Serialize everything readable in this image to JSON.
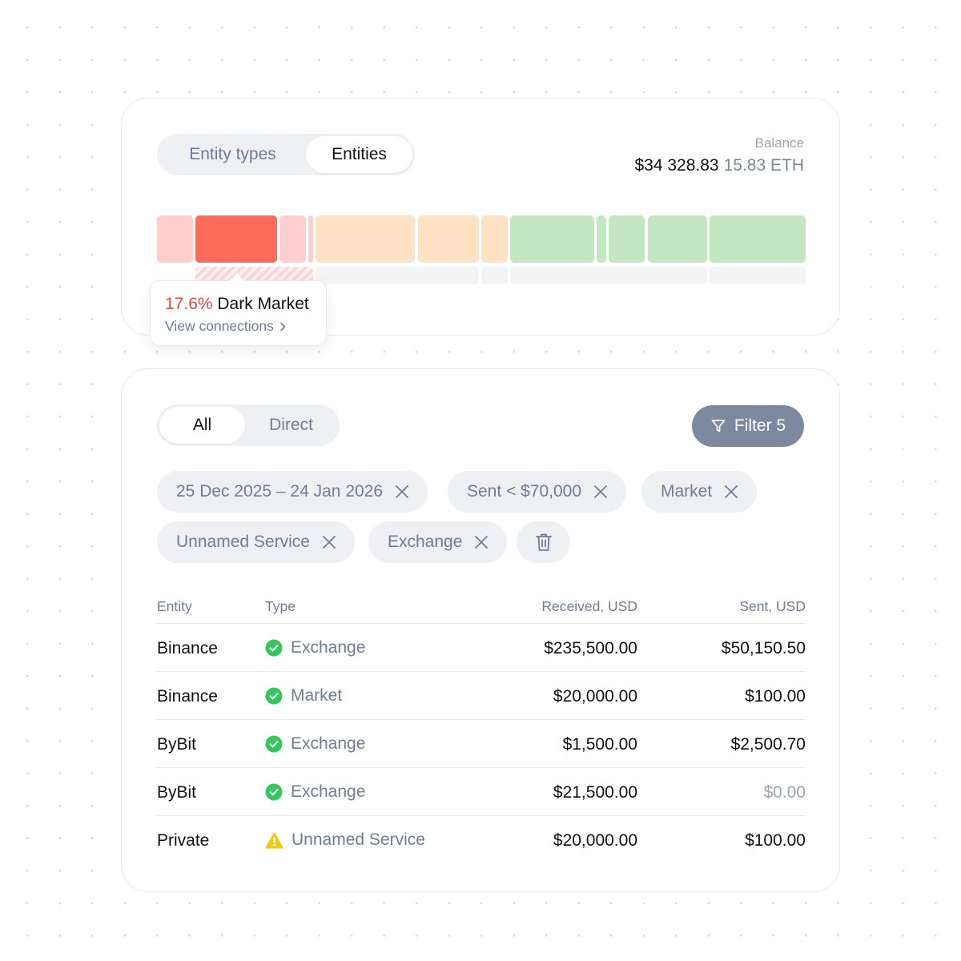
{
  "colors": {
    "accent_red": "#e24b3b",
    "filter_button": "#7d89a0",
    "success": "#34c759",
    "warning": "#f5c518"
  },
  "overview": {
    "tabs": [
      {
        "label": "Entity types",
        "active": false
      },
      {
        "label": "Entities",
        "active": true
      }
    ],
    "balance": {
      "label": "Balance",
      "usd": "$34 328.83",
      "eth": "15.83 ETH"
    },
    "treemap": {
      "blocks": [
        {
          "color": "#ffcfcf"
        },
        {
          "color": "#ff6b5a"
        },
        {
          "color": "#ffcfcf"
        },
        {
          "color": "#ffcfcf"
        },
        {
          "color": "#ffe2c3"
        },
        {
          "color": "#ffe2c3"
        },
        {
          "color": "#ffe2c3"
        },
        {
          "color": "#c3e8c1"
        },
        {
          "color": "#c3e8c1"
        },
        {
          "color": "#c3e8c1"
        },
        {
          "color": "#c3e8c1"
        },
        {
          "color": "#c3e8c1"
        }
      ]
    },
    "tooltip": {
      "percent": "17.6%",
      "label": "Dark Market",
      "link": "View connections"
    }
  },
  "connections": {
    "tabs": [
      {
        "label": "All",
        "active": true
      },
      {
        "label": "Direct",
        "active": false
      }
    ],
    "filter_button": {
      "label": "Filter 5",
      "icon": "filter-icon"
    },
    "chips": [
      {
        "label": "25 Dec 2025 – 24 Jan 2026"
      },
      {
        "label": "Sent < $70,000"
      },
      {
        "label": "Market"
      },
      {
        "label": "Unnamed Service"
      },
      {
        "label": "Exchange"
      }
    ],
    "table": {
      "headers": {
        "entity": "Entity",
        "type": "Type",
        "received": "Received, USD",
        "sent": "Sent, USD"
      },
      "rows": [
        {
          "entity": "Binance",
          "type": "Exchange",
          "status": "check-circle-icon",
          "received": "$235,500.00",
          "sent": "$50,150.50",
          "sent_muted": false
        },
        {
          "entity": "Binance",
          "type": "Market",
          "status": "check-circle-icon",
          "received": "$20,000.00",
          "sent": "$100.00",
          "sent_muted": false
        },
        {
          "entity": "ByBit",
          "type": "Exchange",
          "status": "check-circle-icon",
          "received": "$1,500.00",
          "sent": "$2,500.70",
          "sent_muted": false
        },
        {
          "entity": "ByBit",
          "type": "Exchange",
          "status": "check-circle-icon",
          "received": "$21,500.00",
          "sent": "$0.00",
          "sent_muted": true
        },
        {
          "entity": "Private",
          "type": "Unnamed Service",
          "status": "warning-icon",
          "received": "$20,000.00",
          "sent": "$100.00",
          "sent_muted": false
        }
      ]
    }
  }
}
